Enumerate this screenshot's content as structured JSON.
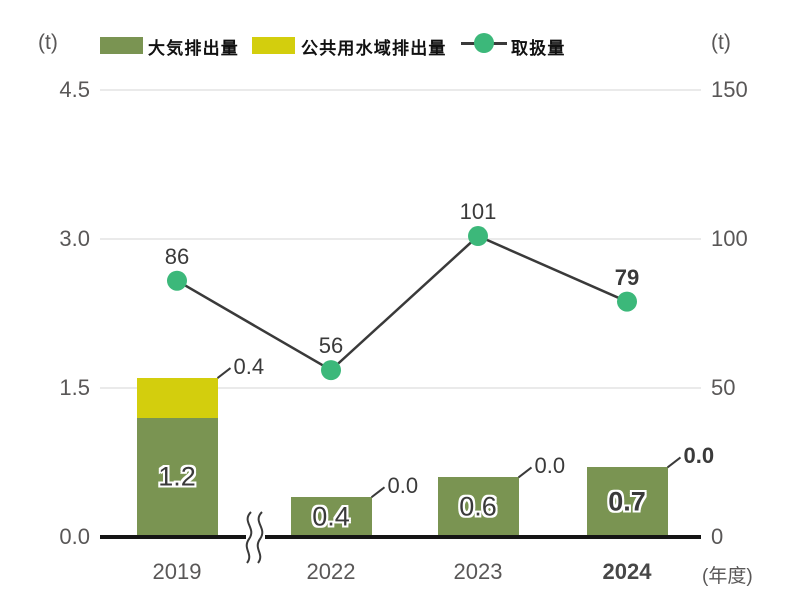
{
  "units": {
    "left": "(t)",
    "right": "(t)",
    "x_suffix": "(年度)"
  },
  "legend": [
    {
      "label": "大気排出量",
      "marker": "swatch",
      "color": "#7a9452"
    },
    {
      "label": "公共用水域排出量",
      "marker": "swatch",
      "color": "#d3ce0d"
    },
    {
      "label": "取扱量",
      "marker": "line-dot",
      "color": "#3cb87a"
    }
  ],
  "colors": {
    "bar_air": "#7a9452",
    "bar_water": "#d3ce0d",
    "line": "#3a3a3a",
    "line_marker": "#3cb87a",
    "grid": "#eaeaea",
    "axis_text": "#595757",
    "baseline": "#151515",
    "label_text": "#3a3a3a"
  },
  "chart_data": {
    "type": "bar+line",
    "categories": [
      "2019",
      "2022",
      "2023",
      "2024"
    ],
    "emphasized_category": "2024",
    "axis_break_after": "2019",
    "grid": true,
    "legend_position": "top",
    "series": [
      {
        "name": "大気排出量",
        "type": "bar",
        "stack": "emissions",
        "axis": "left",
        "color": "#7a9452",
        "values": [
          1.2,
          0.4,
          0.6,
          0.7
        ]
      },
      {
        "name": "公共用水域排出量",
        "type": "bar",
        "stack": "emissions",
        "axis": "left",
        "color": "#d3ce0d",
        "values": [
          0.4,
          0.0,
          0.0,
          0.0
        ]
      },
      {
        "name": "取扱量",
        "type": "line",
        "axis": "right",
        "color": "#3cb87a",
        "values": [
          86,
          56,
          101,
          79
        ]
      }
    ],
    "left_axis": {
      "unit": "(t)",
      "range": [
        0,
        4.5
      ],
      "ticks": [
        0,
        1.5,
        3.0,
        4.5
      ],
      "tick_labels": [
        "4.5",
        "3.0",
        "1.5",
        "0.0"
      ]
    },
    "right_axis": {
      "unit": "(t)",
      "range": [
        0,
        150
      ],
      "ticks": [
        0,
        50,
        100,
        150
      ],
      "tick_labels": [
        "150",
        "100",
        "50",
        "0"
      ]
    }
  }
}
